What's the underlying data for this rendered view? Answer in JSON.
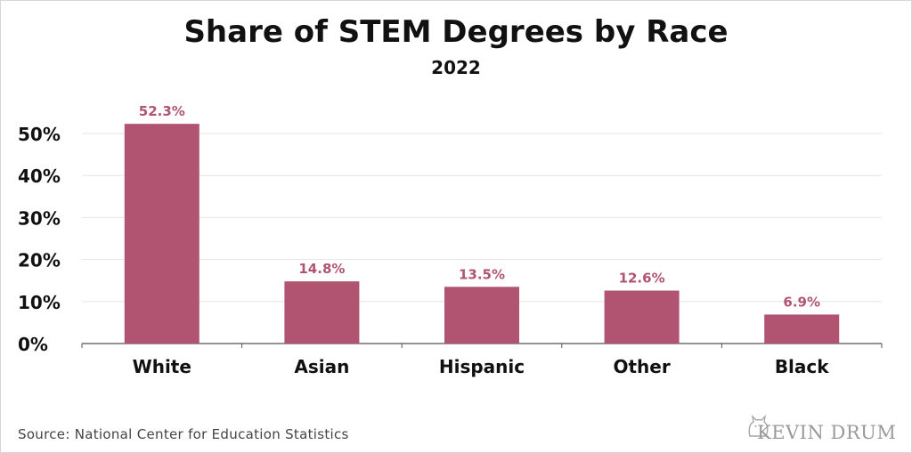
{
  "chart_data": {
    "type": "bar",
    "title": "Share of STEM Degrees by Race",
    "subtitle": "2022",
    "categories": [
      "White",
      "Asian",
      "Hispanic",
      "Other",
      "Black"
    ],
    "values": [
      52.3,
      14.8,
      13.5,
      12.6,
      6.9
    ],
    "data_labels": [
      "52.3%",
      "14.8%",
      "13.5%",
      "12.6%",
      "6.9%"
    ],
    "yticks": [
      0,
      10,
      20,
      30,
      40,
      50
    ],
    "ytick_labels": [
      "0%",
      "10%",
      "20%",
      "30%",
      "40%",
      "50%"
    ],
    "ylim": [
      0,
      58
    ],
    "xlabel": "",
    "ylabel": "",
    "grid": true,
    "bar_color": "#b05472",
    "label_color": "#b05472",
    "grid_color": "#e6e6e6"
  },
  "footer": {
    "source": "Source: National Center for Education Statistics",
    "watermark": "KEVIN DRUM"
  },
  "icons": {
    "watermark_icon": "cat-icon"
  }
}
